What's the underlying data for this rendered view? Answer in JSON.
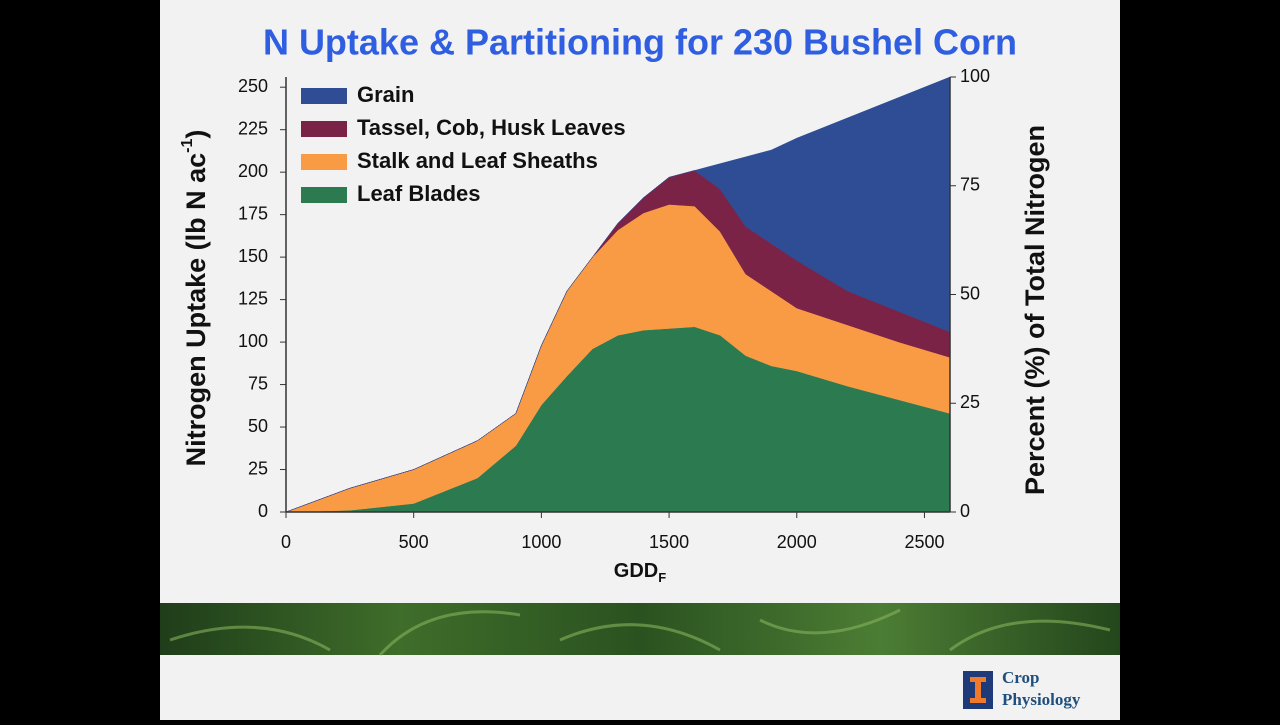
{
  "chart_data": {
    "type": "stacked_area",
    "title": "N Uptake & Partitioning for 230 Bushel Corn",
    "y_label": {
      "text": "Nitrogen Uptake (lb N ac",
      "superscript": "-1",
      "suffix": ")"
    },
    "y2_label": "Percent (%) of Total Nitrogen",
    "x_label": {
      "text": "GDD",
      "subscript": "F"
    },
    "x": [
      0,
      250,
      500,
      750,
      900,
      1000,
      1100,
      1200,
      1300,
      1400,
      1500,
      1600,
      1700,
      1800,
      1900,
      2000,
      2200,
      2400,
      2600
    ],
    "series": [
      {
        "name": "Leaf Blades",
        "color": "#2b7a50",
        "values": [
          0,
          1,
          5,
          20,
          39,
          63,
          80,
          96,
          104,
          107,
          108,
          109,
          104,
          92,
          86,
          83,
          74,
          66,
          58
        ]
      },
      {
        "name": "Stalk and Leaf Sheaths",
        "color": "#f99b45",
        "values": [
          0,
          13,
          20,
          22,
          19,
          35,
          50,
          54,
          62,
          69,
          73,
          71,
          61,
          48,
          44,
          37,
          36,
          34,
          33
        ]
      },
      {
        "name": "Tassel, Cob, Husk Leaves",
        "color": "#7b2346",
        "values": [
          0,
          0,
          0,
          0,
          0,
          0,
          0,
          0,
          4,
          9,
          16,
          21,
          25,
          28,
          28,
          28,
          20,
          18,
          15
        ]
      },
      {
        "name": "Grain",
        "color": "#2e4d94",
        "values": [
          0,
          0,
          0,
          0,
          0,
          0,
          0,
          0,
          0,
          0,
          0,
          0,
          15,
          41,
          55,
          72,
          102,
          126,
          150
        ]
      }
    ],
    "xlim": [
      0,
      2600
    ],
    "xticks": [
      0,
      500,
      1000,
      1500,
      2000,
      2500
    ],
    "ylim": [
      0,
      256
    ],
    "yticks": [
      0,
      25,
      50,
      75,
      100,
      125,
      150,
      175,
      200,
      225,
      250
    ],
    "y2lim": [
      0,
      100
    ],
    "y2ticks": [
      0,
      25,
      50,
      75,
      100
    ],
    "legend": "upper left"
  },
  "footer": {
    "logo_lines": [
      "Crop",
      "Physiology"
    ]
  }
}
